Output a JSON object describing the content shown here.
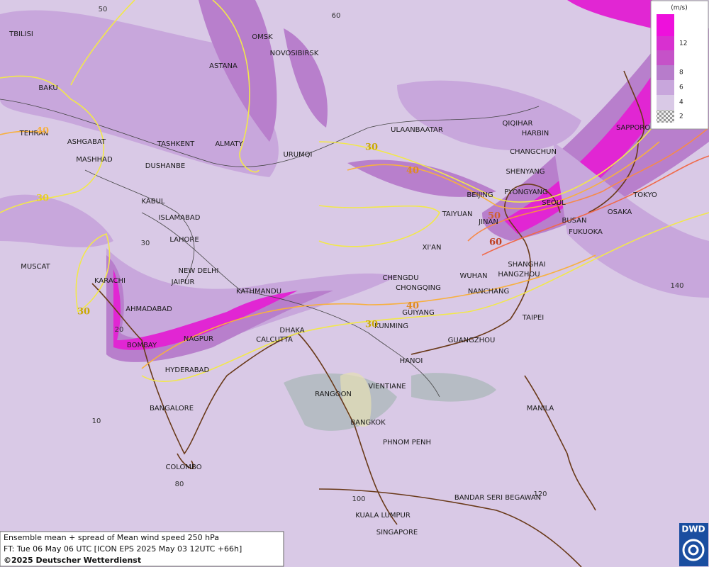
{
  "map": {
    "cities": [
      "TBILISI",
      "OMSK",
      "NOVOSIBIRSK",
      "ASTANA",
      "BAKU",
      "TEHRAN",
      "ASHGABAT",
      "MASHHAD",
      "TASHKENT",
      "ALMATY",
      "DUSHANBE",
      "URUMQI",
      "ULAANBAATAR",
      "QIQIHAR",
      "HARBIN",
      "CHANGCHUN",
      "SHENYANG",
      "PYONGYANG",
      "BEIJING",
      "SEOUL",
      "SAPPORO",
      "TOKYO",
      "OSAKA",
      "BUSAN",
      "FUKUOKA",
      "TAIYUAN",
      "JINAN",
      "KABUL",
      "ISLAMABAD",
      "LAHORE",
      "NEW DELHI",
      "JAIPUR",
      "XI'AN",
      "SHANGHAI",
      "HANGZHOU",
      "WUHAN",
      "CHENGDU",
      "CHONGQING",
      "NANCHANG",
      "MUSCAT",
      "KARACHI",
      "AHMADABAD",
      "KATHMANDU",
      "GUIYANG",
      "TAIPEI",
      "KUNMING",
      "DHAKA",
      "CALCUTTA",
      "BOMBAY",
      "NAGPUR",
      "GUANGZHOU",
      "HANOI",
      "HYDERABAD",
      "RANGOON",
      "VIENTIANE",
      "BANGALORE",
      "MANILA",
      "BANGKOK",
      "PHNOM PENH",
      "COLOMBO",
      "BANDAR SERI BEGAWAN",
      "KUALA LUMPUR",
      "SINGAPORE"
    ],
    "contour_labels": [
      40,
      30,
      30,
      40,
      50,
      60,
      30,
      40,
      30
    ],
    "grid_labels": [
      50,
      60,
      30,
      140,
      20,
      10,
      80,
      100,
      120
    ]
  },
  "legend": {
    "unit": "(m/s)",
    "labels": [
      12,
      8,
      6,
      4,
      2
    ]
  },
  "caption": {
    "lines": [
      "Ensemble mean + spread of Mean wind speed 250 hPa",
      "FT: Tue 06 May 06 UTC [ICON EPS 2025 May 03 12UTC +66h]",
      "©2025 Deutscher Wetterdienst"
    ]
  },
  "logo": "DWD"
}
